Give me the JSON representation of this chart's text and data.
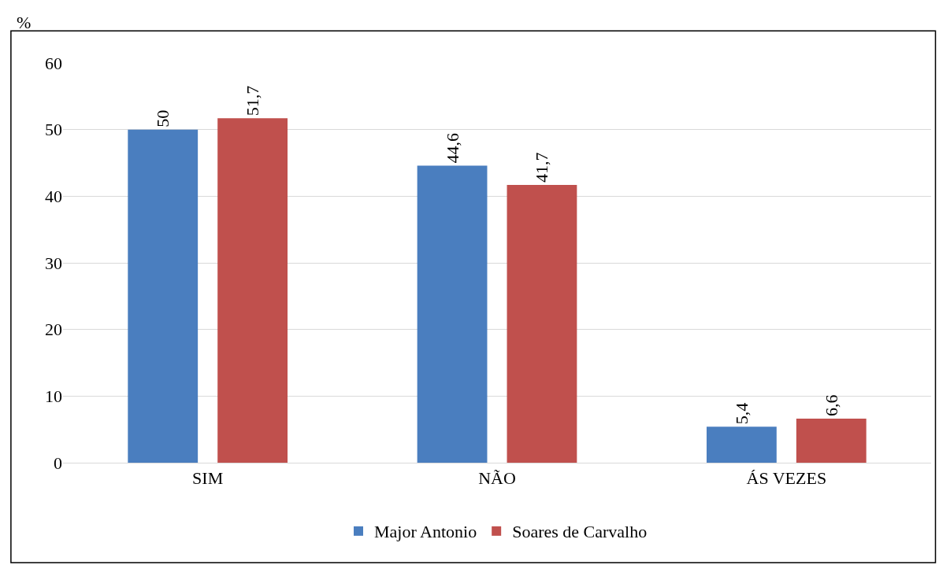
{
  "chart_data": {
    "type": "bar",
    "ylabel": "%",
    "categories": [
      "SIM",
      "NÃO",
      "ÁS VEZES"
    ],
    "series": [
      {
        "name": "Major Antonio",
        "color": "#4a7ebf",
        "values": [
          50,
          44.6,
          5.4
        ],
        "value_labels": [
          "50",
          "44,6",
          "5,4"
        ]
      },
      {
        "name": "Soares de Carvalho",
        "color": "#c0504d",
        "values": [
          51.7,
          41.7,
          6.6
        ],
        "value_labels": [
          "51,7",
          "41,7",
          "6,6"
        ]
      }
    ],
    "ylim": [
      0,
      60
    ],
    "yticks": [
      0,
      10,
      20,
      30,
      40,
      50,
      60
    ],
    "grid": "y",
    "legend": "bottom"
  }
}
